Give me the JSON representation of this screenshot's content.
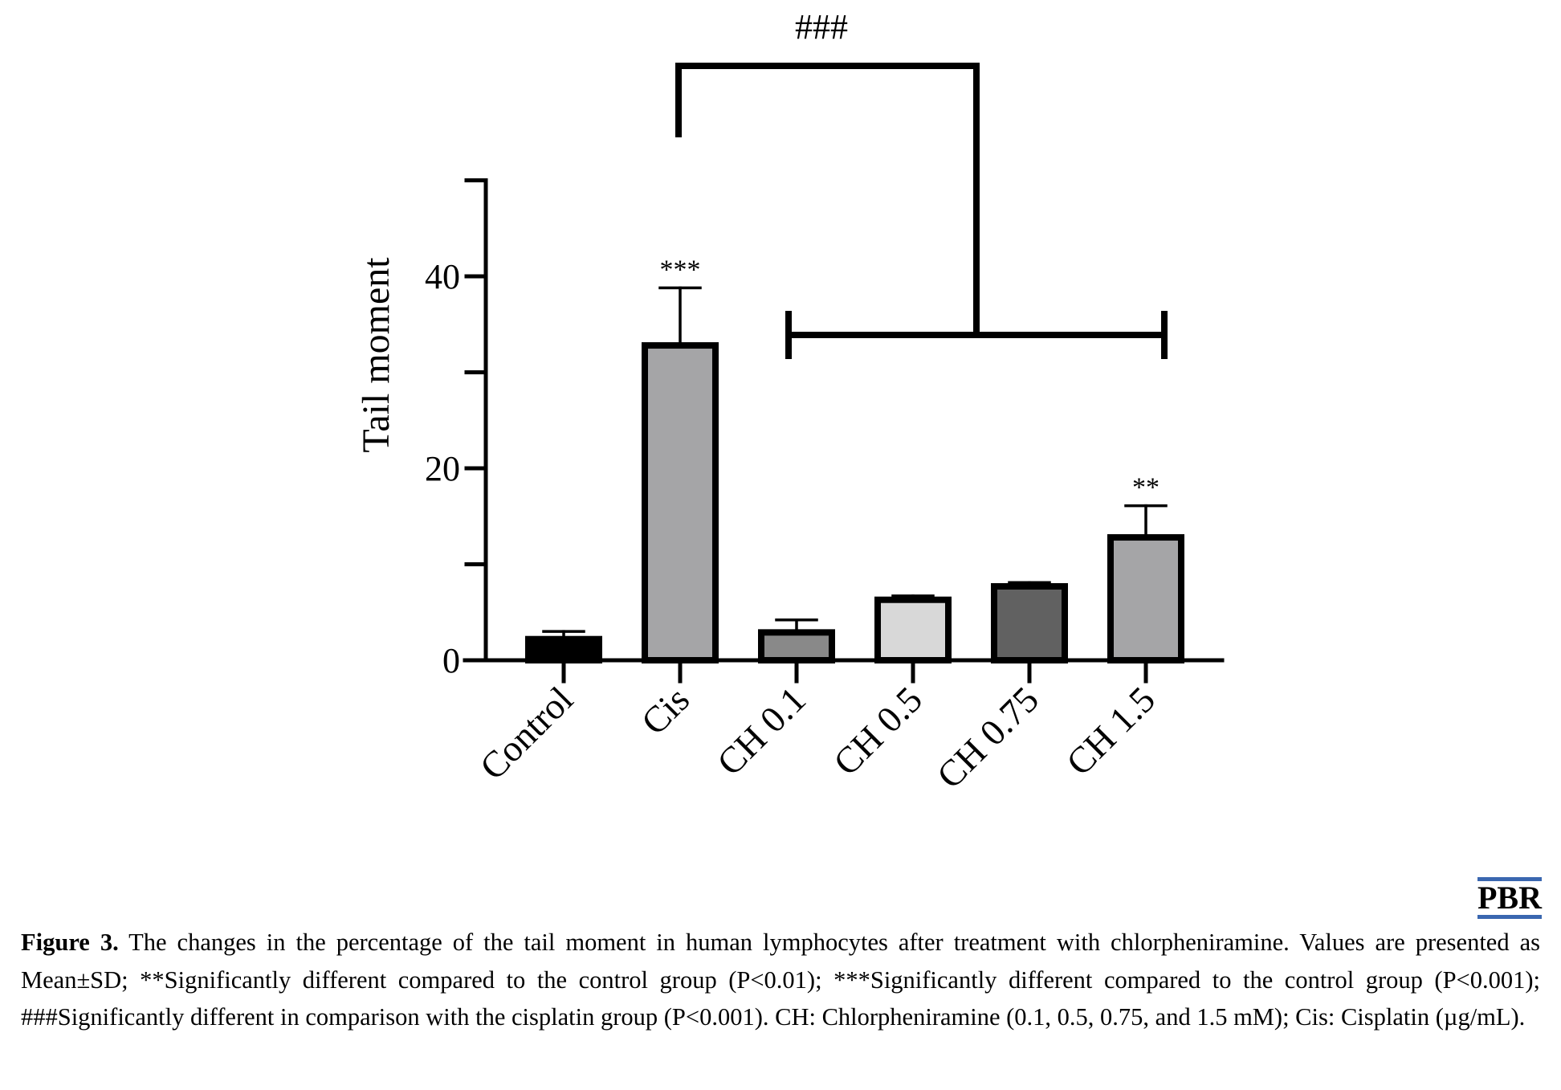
{
  "chart_data": {
    "type": "bar",
    "categories": [
      "Control",
      "Cis",
      "CH 0.1",
      "CH 0.5",
      "CH 0.75",
      "CH 1.5"
    ],
    "values": [
      2.2,
      32.8,
      2.9,
      6.3,
      7.7,
      12.8
    ],
    "errors": [
      0.8,
      6.0,
      1.3,
      0.4,
      0.4,
      3.3
    ],
    "bar_colors": [
      "#000000",
      "#a5a5a7",
      "#898989",
      "#d8d8d8",
      "#616161",
      "#a5a5a7"
    ],
    "significance": [
      "",
      "***",
      "",
      "",
      "",
      "**"
    ],
    "bracket_label": "###",
    "xlabel": "",
    "ylabel": "Tail moment",
    "ylim": [
      0,
      50
    ],
    "yticks": [
      0,
      10,
      20,
      30,
      40,
      50
    ],
    "ytick_labels": [
      "0",
      "",
      "20",
      "",
      "40",
      ""
    ]
  },
  "brand": "PBR",
  "caption": {
    "label": "Figure 3.",
    "text": " The changes in the percentage of the tail moment in human lymphocytes after treatment with chlorpheniramine. Values are presented as Mean±SD; **Significantly different compared to the control group (P<0.01); ***Significantly different compared to the control group (P<0.001); ###Significantly different in comparison with the cisplatin group (P<0.001). CH: Chlorpheniramine (0.1, 0.5, 0.75, and 1.5 mM); Cis: Cisplatin (µg/mL)."
  }
}
